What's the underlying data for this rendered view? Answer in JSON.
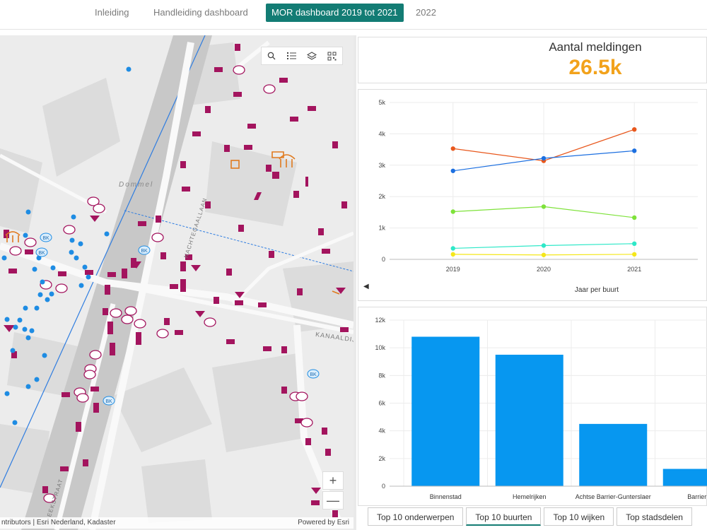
{
  "nav": {
    "tabs": [
      {
        "label": "Inleiding"
      },
      {
        "label": "Handleiding dashboard"
      },
      {
        "label": "MOR dashboard 2019 tot 2021"
      },
      {
        "label": "2022"
      }
    ],
    "active_index": 2,
    "active_color": "#137c74"
  },
  "map": {
    "street_labels": [
      "Dommel",
      "NACHTEGAALLAAN",
      "KANAALDIJ",
      "EEKSTRAAT"
    ],
    "attribution_left": "ntributors | Esri Nederland, Kadaster",
    "attribution_right": "Powered by Esri",
    "toolbar_icons": [
      "search-icon",
      "list-icon",
      "layers-icon",
      "qr-grid-icon"
    ],
    "zoom_in": "+",
    "zoom_out": "—",
    "marker_color_magenta": "#a3145e",
    "marker_color_blue": "#1e8ce3",
    "marker_color_orange": "#e07a1f"
  },
  "kpi": {
    "title": "Aantal meldingen",
    "value": "26.5k",
    "color": "#f2a21b"
  },
  "line_chart": {
    "xlabel": "Jaar per buurt",
    "collapse_icon": "◀"
  },
  "bar_chart_tabs": [
    {
      "label": "Top 10 onderwerpen"
    },
    {
      "label": "Top 10 buurten"
    },
    {
      "label": "Top 10 wijken"
    },
    {
      "label": "Top stadsdelen"
    }
  ],
  "bar_chart_active_tab": 1,
  "chart_data": [
    {
      "type": "line",
      "x": [
        "2019",
        "2020",
        "2021"
      ],
      "ylim": [
        0,
        5000
      ],
      "yticks": [
        "0",
        "1k",
        "2k",
        "3k",
        "4k",
        "5k"
      ],
      "xlabel": "Jaar per buurt",
      "grid": true,
      "series": [
        {
          "color": "#e8571c",
          "values": [
            3530,
            3140,
            4140
          ]
        },
        {
          "color": "#1c6fe0",
          "values": [
            2820,
            3220,
            3460
          ]
        },
        {
          "color": "#7ee23a",
          "values": [
            1520,
            1680,
            1330
          ]
        },
        {
          "color": "#2ee8c8",
          "values": [
            350,
            440,
            500
          ]
        },
        {
          "color": "#f5e71a",
          "values": [
            160,
            140,
            160
          ]
        }
      ]
    },
    {
      "type": "bar",
      "categories": [
        "Binnenstad",
        "Hemelrijken",
        "Achtse Barrier-Gunterslaer",
        "Barrier"
      ],
      "values": [
        10800,
        9500,
        4500,
        1250
      ],
      "ylim": [
        0,
        12000
      ],
      "yticks": [
        "0",
        "2k",
        "4k",
        "6k",
        "8k",
        "10k",
        "12k"
      ],
      "color": "#0797f0",
      "grid": true
    }
  ]
}
